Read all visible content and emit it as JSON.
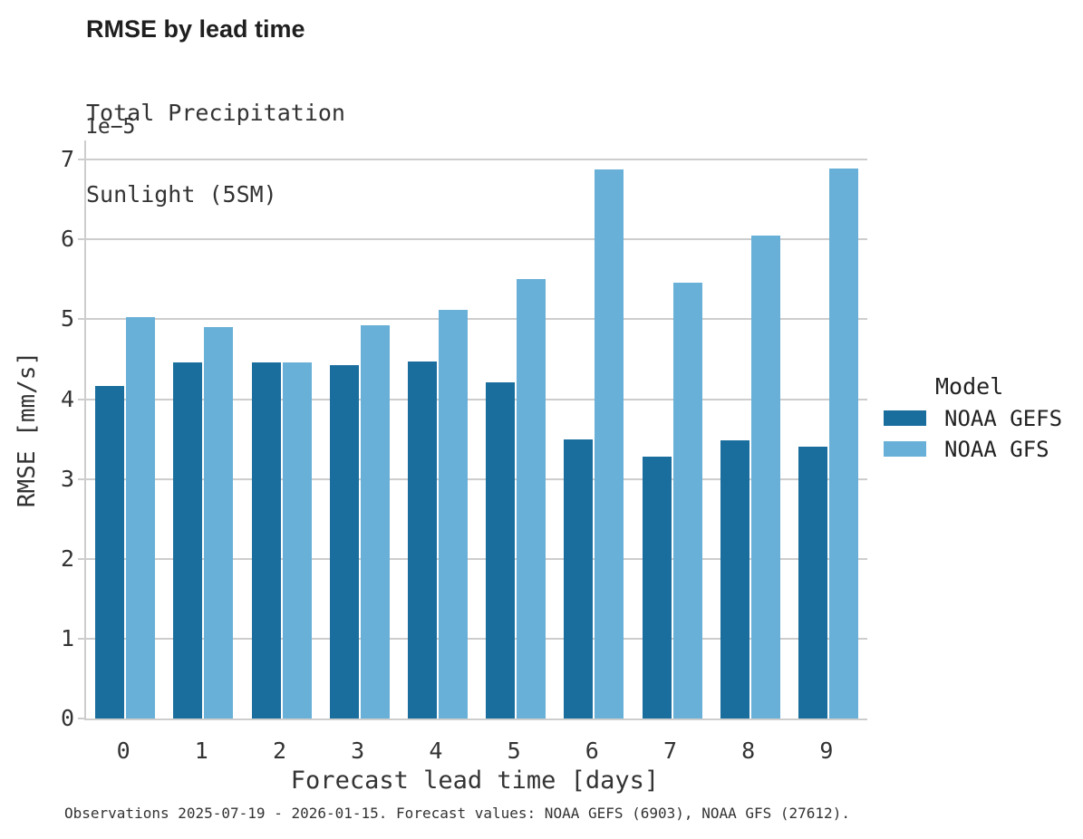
{
  "title": "RMSE by lead time",
  "subtitle_line1": "Total Precipitation",
  "subtitle_line2": "Sunlight (5SM)",
  "footer": "Observations 2025-07-19 - 2026-01-15. Forecast values: NOAA GEFS (6903), NOAA GFS (27612).",
  "legend": {
    "title": "Model",
    "entries": [
      {
        "label": "NOAA GEFS",
        "color": "#1a6e9e"
      },
      {
        "label": "NOAA GFS",
        "color": "#69b0d8"
      }
    ]
  },
  "colors": {
    "gefs_bar": "#1a6e9e",
    "gfs_bar": "#69b0d8",
    "gridline": "#cdcdcd",
    "text": "#333333",
    "title_text": "#1f1f1f"
  },
  "chart_data": {
    "type": "bar",
    "title": "RMSE by lead time",
    "subtitle": "Total Precipitation Sunlight (5SM)",
    "xlabel": "Forecast lead time [days]",
    "ylabel": "RMSE [mm/s]",
    "offset_label": "1e−5",
    "value_scale": 1e-05,
    "categories": [
      0,
      1,
      2,
      3,
      4,
      5,
      6,
      7,
      8,
      9
    ],
    "series": [
      {
        "name": "NOAA GEFS",
        "color": "#1a6e9e",
        "values": [
          4.17,
          4.46,
          4.46,
          4.43,
          4.47,
          4.21,
          3.49,
          3.28,
          3.48,
          3.4
        ]
      },
      {
        "name": "NOAA GFS",
        "color": "#69b0d8",
        "values": [
          5.03,
          4.9,
          4.46,
          4.92,
          5.12,
          5.5,
          6.88,
          5.46,
          6.05,
          6.89
        ]
      }
    ],
    "yticks": [
      0,
      1,
      2,
      3,
      4,
      5,
      6,
      7
    ],
    "ylim": [
      0,
      7.24
    ],
    "grid": "horizontal",
    "legend_position": "center right"
  }
}
